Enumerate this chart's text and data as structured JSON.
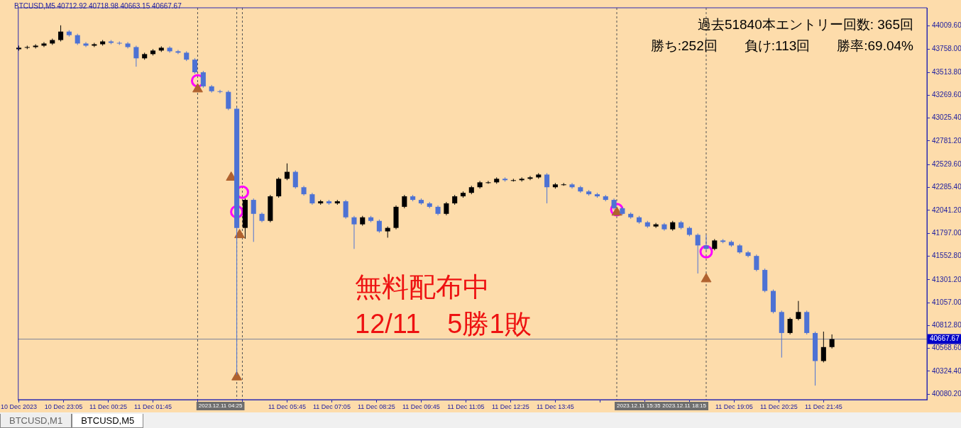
{
  "chart_data": {
    "type": "candlestick",
    "title": "BTCUSD,M5  40712.92 40718.98 40663.15 40667.67",
    "x": [
      "2023-12-10T21:45",
      "2023-12-10T22:00",
      "2023-12-10T22:15",
      "2023-12-10T22:30",
      "2023-12-10T22:45",
      "2023-12-10T23:00",
      "2023-12-10T23:15",
      "2023-12-10T23:30",
      "2023-12-10T23:45",
      "2023-12-11T00:00",
      "2023-12-11T00:15",
      "2023-12-11T00:30",
      "2023-12-11T00:45",
      "2023-12-11T01:00",
      "2023-12-11T01:15",
      "2023-12-11T01:30",
      "2023-12-11T01:45",
      "2023-12-11T02:00",
      "2023-12-11T02:15",
      "2023-12-11T02:30",
      "2023-12-11T02:45",
      "2023-12-11T03:00",
      "2023-12-11T03:15",
      "2023-12-11T03:30",
      "2023-12-11T03:45",
      "2023-12-11T04:00",
      "2023-12-11T04:15",
      "2023-12-11T04:30",
      "2023-12-11T04:45",
      "2023-12-11T05:00",
      "2023-12-11T05:15",
      "2023-12-11T05:30",
      "2023-12-11T05:45",
      "2023-12-11T06:00",
      "2023-12-11T06:15",
      "2023-12-11T06:30",
      "2023-12-11T06:45",
      "2023-12-11T07:00",
      "2023-12-11T07:15",
      "2023-12-11T07:30",
      "2023-12-11T07:45",
      "2023-12-11T08:00",
      "2023-12-11T08:15",
      "2023-12-11T08:30",
      "2023-12-11T08:45",
      "2023-12-11T09:00",
      "2023-12-11T09:15",
      "2023-12-11T09:30",
      "2023-12-11T09:45",
      "2023-12-11T10:00",
      "2023-12-11T10:15",
      "2023-12-11T10:30",
      "2023-12-11T10:45",
      "2023-12-11T11:00",
      "2023-12-11T11:15",
      "2023-12-11T11:30",
      "2023-12-11T11:45",
      "2023-12-11T12:00",
      "2023-12-11T12:15",
      "2023-12-11T12:30",
      "2023-12-11T12:45",
      "2023-12-11T13:00",
      "2023-12-11T13:15",
      "2023-12-11T13:30",
      "2023-12-11T13:45",
      "2023-12-11T14:00",
      "2023-12-11T14:15",
      "2023-12-11T14:30",
      "2023-12-11T14:45",
      "2023-12-11T15:00",
      "2023-12-11T15:15",
      "2023-12-11T15:30",
      "2023-12-11T15:45",
      "2023-12-11T16:00",
      "2023-12-11T16:15",
      "2023-12-11T16:30",
      "2023-12-11T16:45",
      "2023-12-11T17:00",
      "2023-12-11T17:15",
      "2023-12-11T17:30",
      "2023-12-11T17:45",
      "2023-12-11T18:00",
      "2023-12-11T18:15",
      "2023-12-11T18:30",
      "2023-12-11T18:45",
      "2023-12-11T19:00",
      "2023-12-11T19:15",
      "2023-12-11T19:30",
      "2023-12-11T19:45",
      "2023-12-11T20:00",
      "2023-12-11T20:15",
      "2023-12-11T20:30",
      "2023-12-11T20:45",
      "2023-12-11T21:00",
      "2023-12-11T21:15",
      "2023-12-11T21:30",
      "2023-12-11T21:45",
      "2023-12-11T22:00"
    ],
    "ohlc": [
      [
        43760,
        43798,
        43745,
        43776
      ],
      [
        43776,
        43798,
        43761,
        43783
      ],
      [
        43783,
        43813,
        43768,
        43798
      ],
      [
        43798,
        43836,
        43783,
        43821
      ],
      [
        43821,
        43873,
        43806,
        43858
      ],
      [
        43858,
        44015,
        43843,
        43948
      ],
      [
        43948,
        43963,
        43895,
        43910
      ],
      [
        43910,
        43925,
        43806,
        43821
      ],
      [
        43821,
        43836,
        43783,
        43798
      ],
      [
        43798,
        43828,
        43783,
        43813
      ],
      [
        43813,
        43858,
        43798,
        43843
      ],
      [
        43843,
        43858,
        43813,
        43828
      ],
      [
        43828,
        43843,
        43806,
        43821
      ],
      [
        43821,
        43836,
        43768,
        43783
      ],
      [
        43783,
        43798,
        43574,
        43663
      ],
      [
        43663,
        43723,
        43648,
        43708
      ],
      [
        43708,
        43761,
        43693,
        43746
      ],
      [
        43746,
        43791,
        43731,
        43776
      ],
      [
        43776,
        43791,
        43723,
        43738
      ],
      [
        43738,
        43753,
        43708,
        43723
      ],
      [
        43723,
        43738,
        43634,
        43649
      ],
      [
        43649,
        43664,
        43499,
        43514
      ],
      [
        43514,
        43529,
        43349,
        43364
      ],
      [
        43364,
        43379,
        43297,
        43312
      ],
      [
        43312,
        43327,
        43290,
        43305
      ],
      [
        43305,
        43320,
        43110,
        43125
      ],
      [
        43125,
        43140,
        40284,
        41854
      ],
      [
        41854,
        42168,
        41739,
        42153
      ],
      [
        42153,
        42168,
        41705,
        42004
      ],
      [
        42004,
        42019,
        41914,
        41929
      ],
      [
        41929,
        42206,
        41914,
        42191
      ],
      [
        42191,
        42393,
        42176,
        42378
      ],
      [
        42378,
        42542,
        42363,
        42452
      ],
      [
        42452,
        42467,
        42273,
        42288
      ],
      [
        42288,
        42303,
        42198,
        42213
      ],
      [
        42213,
        42228,
        42101,
        42116
      ],
      [
        42116,
        42153,
        42101,
        42138
      ],
      [
        42138,
        42153,
        42101,
        42116
      ],
      [
        42116,
        42153,
        42101,
        42138
      ],
      [
        42138,
        42153,
        41952,
        41967
      ],
      [
        41967,
        41982,
        41630,
        41892
      ],
      [
        41892,
        41982,
        41877,
        41967
      ],
      [
        41967,
        41982,
        41914,
        41929
      ],
      [
        41929,
        41944,
        41802,
        41817
      ],
      [
        41817,
        41869,
        41750,
        41854
      ],
      [
        41854,
        42094,
        41839,
        42079
      ],
      [
        42079,
        42206,
        42064,
        42191
      ],
      [
        42191,
        42206,
        42138,
        42153
      ],
      [
        42153,
        42168,
        42101,
        42116
      ],
      [
        42116,
        42131,
        42064,
        42079
      ],
      [
        42079,
        42094,
        41989,
        42004
      ],
      [
        42004,
        42131,
        41989,
        42116
      ],
      [
        42116,
        42206,
        42101,
        42191
      ],
      [
        42191,
        42243,
        42176,
        42228
      ],
      [
        42228,
        42303,
        42213,
        42288
      ],
      [
        42288,
        42355,
        42273,
        42340
      ],
      [
        42340,
        42355,
        42325,
        42340
      ],
      [
        42340,
        42393,
        42325,
        42378
      ],
      [
        42378,
        42393,
        42348,
        42363
      ],
      [
        42363,
        42378,
        42348,
        42363
      ],
      [
        42363,
        42393,
        42348,
        42378
      ],
      [
        42378,
        42408,
        42363,
        42393
      ],
      [
        42393,
        42438,
        42378,
        42423
      ],
      [
        42423,
        42438,
        42116,
        42288
      ],
      [
        42288,
        42333,
        42273,
        42318
      ],
      [
        42318,
        42333,
        42303,
        42318
      ],
      [
        42318,
        42333,
        42273,
        42288
      ],
      [
        42288,
        42303,
        42228,
        42243
      ],
      [
        42243,
        42258,
        42198,
        42213
      ],
      [
        42213,
        42228,
        42176,
        42191
      ],
      [
        42191,
        42206,
        42138,
        42153
      ],
      [
        42153,
        42168,
        42049,
        42064
      ],
      [
        42064,
        42079,
        41989,
        42004
      ],
      [
        42004,
        42019,
        41952,
        41967
      ],
      [
        41967,
        41982,
        41899,
        41914
      ],
      [
        41914,
        41929,
        41854,
        41869
      ],
      [
        41869,
        41907,
        41854,
        41892
      ],
      [
        41892,
        41907,
        41824,
        41839
      ],
      [
        41839,
        41929,
        41824,
        41914
      ],
      [
        41914,
        41929,
        41839,
        41854
      ],
      [
        41854,
        41869,
        41765,
        41780
      ],
      [
        41780,
        41795,
        41368,
        41667
      ],
      [
        41667,
        41780,
        41615,
        41630
      ],
      [
        41630,
        41735,
        41615,
        41720
      ],
      [
        41720,
        41735,
        41690,
        41705
      ],
      [
        41705,
        41720,
        41652,
        41667
      ],
      [
        41667,
        41682,
        41578,
        41593
      ],
      [
        41593,
        41608,
        41540,
        41555
      ],
      [
        41555,
        41570,
        41391,
        41406
      ],
      [
        41406,
        41421,
        41167,
        41182
      ],
      [
        41182,
        41197,
        40942,
        40957
      ],
      [
        40957,
        40972,
        40471,
        40733
      ],
      [
        40733,
        40898,
        40718,
        40883
      ],
      [
        40883,
        41075,
        40868,
        40957
      ],
      [
        40957,
        40972,
        40718,
        40733
      ],
      [
        40733,
        40748,
        40172,
        40434
      ],
      [
        40434,
        40748,
        40419,
        40583
      ],
      [
        40583,
        40718,
        40568,
        40668
      ]
    ],
    "colors": [
      "#000000",
      "#000000",
      "#000000",
      "#000000",
      "#000000",
      "#000000",
      "#4d72d4",
      "#4d72d4",
      "#4d72d4",
      "#000000",
      "#000000",
      "#4d72d4",
      "#4d72d4",
      "#4d72d4",
      "#4d72d4",
      "#000000",
      "#000000",
      "#000000",
      "#4d72d4",
      "#4d72d4",
      "#4d72d4",
      "#4d72d4",
      "#4d72d4",
      "#4d72d4",
      "#4d72d4",
      "#4d72d4",
      "#4d72d4",
      "#000000",
      "#4d72d4",
      "#4d72d4",
      "#000000",
      "#000000",
      "#000000",
      "#4d72d4",
      "#4d72d4",
      "#4d72d4",
      "#000000",
      "#4d72d4",
      "#000000",
      "#4d72d4",
      "#4d72d4",
      "#000000",
      "#4d72d4",
      "#4d72d4",
      "#000000",
      "#000000",
      "#000000",
      "#4d72d4",
      "#4d72d4",
      "#4d72d4",
      "#4d72d4",
      "#000000",
      "#000000",
      "#000000",
      "#000000",
      "#000000",
      "#000000",
      "#000000",
      "#4d72d4",
      "#000000",
      "#000000",
      "#000000",
      "#000000",
      "#4d72d4",
      "#000000",
      "#000000",
      "#4d72d4",
      "#4d72d4",
      "#4d72d4",
      "#4d72d4",
      "#4d72d4",
      "#4d72d4",
      "#4d72d4",
      "#4d72d4",
      "#4d72d4",
      "#4d72d4",
      "#000000",
      "#4d72d4",
      "#000000",
      "#4d72d4",
      "#4d72d4",
      "#4d72d4",
      "#4d72d4",
      "#000000",
      "#4d72d4",
      "#4d72d4",
      "#4d72d4",
      "#4d72d4",
      "#4d72d4",
      "#4d72d4",
      "#4d72d4",
      "#4d72d4",
      "#000000",
      "#000000",
      "#4d72d4",
      "#4d72d4",
      "#000000",
      "#000000"
    ],
    "series": [
      {
        "type": "scatter",
        "marker": "triangle",
        "color": "#b0622f",
        "x": [
          "2023-12-11T03:05",
          "2023-12-11T04:05",
          "2023-12-11T04:20",
          "2023-12-11T04:15",
          "2023-12-11T15:35",
          "2023-12-11T18:15"
        ],
        "values": [
          43334,
          42392,
          41779,
          40262,
          42019,
          41308
        ]
      },
      {
        "type": "scatter",
        "marker": "circle",
        "color": "#ff00ff",
        "x": [
          "2023-12-11T03:05",
          "2023-12-11T04:15",
          "2023-12-11T04:25",
          "2023-12-11T15:35",
          "2023-12-11T18:15"
        ],
        "values": [
          43424,
          42026,
          42235,
          42049,
          41600
        ]
      }
    ],
    "xlim": [
      "2023-12-10T21:44",
      "2023-12-12T00:50"
    ],
    "xticks": [
      {
        "value": "2023-12-10T21:45",
        "label": "10 Dec 2023"
      },
      {
        "value": "2023-12-10T23:05",
        "label": "10 Dec 23:05"
      },
      {
        "value": "2023-12-11T00:25",
        "label": "11 Dec 00:25"
      },
      {
        "value": "2023-12-11T01:45",
        "label": "11 Dec 01:45"
      },
      {
        "value": "2023-12-11T03:05",
        "label": null
      },
      {
        "value": "2023-12-11T04:25",
        "label": null
      },
      {
        "value": "2023-12-11T05:45",
        "label": "11 Dec 05:45"
      },
      {
        "value": "2023-12-11T07:05",
        "label": "11 Dec 07:05"
      },
      {
        "value": "2023-12-11T08:25",
        "label": "11 Dec 08:25"
      },
      {
        "value": "2023-12-11T09:45",
        "label": "11 Dec 09:45"
      },
      {
        "value": "2023-12-11T11:05",
        "label": "11 Dec 11:05"
      },
      {
        "value": "2023-12-11T12:25",
        "label": "11 Dec 12:25"
      },
      {
        "value": "2023-12-11T13:45",
        "label": "11 Dec 13:45"
      },
      {
        "value": "2023-12-11T15:05",
        "label": null
      },
      {
        "value": "2023-12-11T16:25",
        "label": null
      },
      {
        "value": "2023-12-11T17:45",
        "label": null
      },
      {
        "value": "2023-12-11T19:05",
        "label": "11 Dec 19:05"
      },
      {
        "value": "2023-12-11T20:25",
        "label": "11 Dec 20:25"
      },
      {
        "value": "2023-12-11T21:45",
        "label": "11 Dec 21:45"
      }
    ],
    "ylim": [
      40022,
      44202
    ],
    "yticks": [
      {
        "value": 44009.6,
        "label": "44009.60"
      },
      {
        "value": 43758,
        "label": "43758.00"
      },
      {
        "value": 43513.8,
        "label": "43513.80"
      },
      {
        "value": 43269.6,
        "label": "43269.60"
      },
      {
        "value": 43025.4,
        "label": "43025.40"
      },
      {
        "value": 42781.2,
        "label": "42781.20"
      },
      {
        "value": 42529.6,
        "label": "42529.60"
      },
      {
        "value": 42285.4,
        "label": "42285.40"
      },
      {
        "value": 42041.2,
        "label": "42041.20"
      },
      {
        "value": 41797,
        "label": "41797.00"
      },
      {
        "value": 41552.8,
        "label": "41552.80"
      },
      {
        "value": 41301.2,
        "label": "41301.20"
      },
      {
        "value": 41057,
        "label": "41057.00"
      },
      {
        "value": 40812.8,
        "label": "40812.80"
      },
      {
        "value": 40568.6,
        "label": "40568.60"
      },
      {
        "value": 40324.4,
        "label": "40324.40"
      },
      {
        "value": 40080.2,
        "label": "40080.20"
      }
    ],
    "ref_lines": [
      {
        "axis": "x",
        "value": "2023-12-11T03:05",
        "label": null,
        "color": "#555555",
        "line_style": "dashed"
      },
      {
        "axis": "x",
        "value": "2023-12-11T04:15",
        "label": null,
        "color": "#555555",
        "line_style": "dashed"
      },
      {
        "axis": "x",
        "value": "2023-12-11T04:25",
        "label": "2023.12.11 04:25",
        "color": "#555555",
        "line_style": "dashed"
      },
      {
        "axis": "x",
        "value": "2023-12-11T15:35",
        "label": "2023.12.11 15:35",
        "color": "#555555",
        "line_style": "dashed"
      },
      {
        "axis": "x",
        "value": "2023-12-11T18:15",
        "label": "2023.12.11 18:15",
        "color": "#555555",
        "line_style": "dashed"
      },
      {
        "axis": "y",
        "value": 40667.67,
        "label": "40667.67",
        "color": "#7a8499",
        "line_style": "solid"
      }
    ],
    "annotations": [
      "過去51840本エントリー回数: 365回",
      "勝ち:252回　　負け:113回　　勝率:69.04%",
      "無料配布中",
      "12/11　5勝1敗",
      "BTCUSD,M1",
      "BTCUSD,M5"
    ]
  }
}
